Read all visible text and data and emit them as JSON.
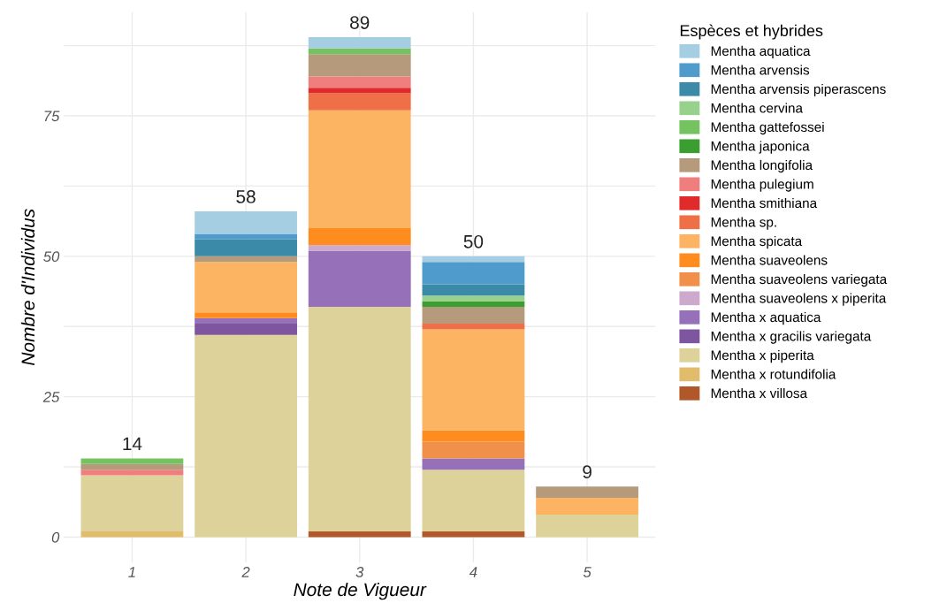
{
  "chart_data": {
    "type": "bar",
    "stacked": true,
    "xlabel": "Note de Vigueur",
    "ylabel": "Nombre d'Individus",
    "legend_title": "Espèces et hybrides",
    "legend": "right",
    "grid": true,
    "categories": [
      "1",
      "2",
      "3",
      "4",
      "5"
    ],
    "ylim": [
      -4.45,
      93.45
    ],
    "yticks": [
      0,
      {
        "value": 12.5,
        "label": null
      },
      25,
      {
        "value": 37.5,
        "label": null
      },
      50,
      {
        "value": 62.5,
        "label": null
      },
      75,
      {
        "value": 87.5,
        "label": null
      }
    ],
    "totals": [
      "14",
      "58",
      "89",
      "50",
      "9"
    ],
    "series": [
      {
        "name": "Mentha x villosa",
        "color": "#b0582a",
        "values": [
          null,
          null,
          1,
          1,
          null
        ]
      },
      {
        "name": "Mentha x rotundifolia",
        "color": "#e1bc6a",
        "values": [
          1,
          null,
          null,
          null,
          null
        ]
      },
      {
        "name": "Mentha x piperita",
        "color": "#ddd39a",
        "values": [
          10,
          36,
          40,
          11,
          4
        ]
      },
      {
        "name": "Mentha x gracilis variegata",
        "color": "#7e569f",
        "values": [
          null,
          2,
          null,
          null,
          null
        ]
      },
      {
        "name": "Mentha x aquatica",
        "color": "#9670b8",
        "values": [
          null,
          1,
          10,
          2,
          null
        ]
      },
      {
        "name": "Mentha suaveolens x piperita",
        "color": "#cdaacd",
        "values": [
          null,
          null,
          1,
          null,
          null
        ]
      },
      {
        "name": "Mentha suaveolens variegata",
        "color": "#f0904a",
        "values": [
          null,
          null,
          null,
          3,
          null
        ]
      },
      {
        "name": "Mentha suaveolens",
        "color": "#fe8c1f",
        "values": [
          null,
          1,
          3,
          2,
          null
        ]
      },
      {
        "name": "Mentha spicata",
        "color": "#fdb462",
        "values": [
          null,
          9,
          21,
          18,
          3
        ]
      },
      {
        "name": "Mentha sp.",
        "color": "#ef6f47",
        "values": [
          null,
          null,
          3,
          1,
          null
        ]
      },
      {
        "name": "Mentha smithiana",
        "color": "#e12a2a",
        "values": [
          null,
          null,
          1,
          null,
          null
        ]
      },
      {
        "name": "Mentha pulegium",
        "color": "#f07e7e",
        "values": [
          1,
          null,
          2,
          null,
          null
        ]
      },
      {
        "name": "Mentha longifolia",
        "color": "#b59b7c",
        "values": [
          1,
          1,
          4,
          3,
          2
        ]
      },
      {
        "name": "Mentha japonica",
        "color": "#3a9e30",
        "values": [
          null,
          null,
          null,
          1,
          null
        ]
      },
      {
        "name": "Mentha gattefossei",
        "color": "#74c360",
        "values": [
          1,
          null,
          1,
          null,
          null
        ]
      },
      {
        "name": "Mentha cervina",
        "color": "#98d18d",
        "values": [
          null,
          null,
          null,
          1,
          null
        ]
      },
      {
        "name": "Mentha arvensis piperascens",
        "color": "#3b8aa8",
        "values": [
          null,
          3,
          null,
          2,
          null
        ]
      },
      {
        "name": "Mentha arvensis",
        "color": "#4f9bcb",
        "values": [
          null,
          1,
          null,
          4,
          null
        ]
      },
      {
        "name": "Mentha aquatica",
        "color": "#a6cee3",
        "values": [
          null,
          4,
          2,
          1,
          null
        ]
      }
    ]
  }
}
